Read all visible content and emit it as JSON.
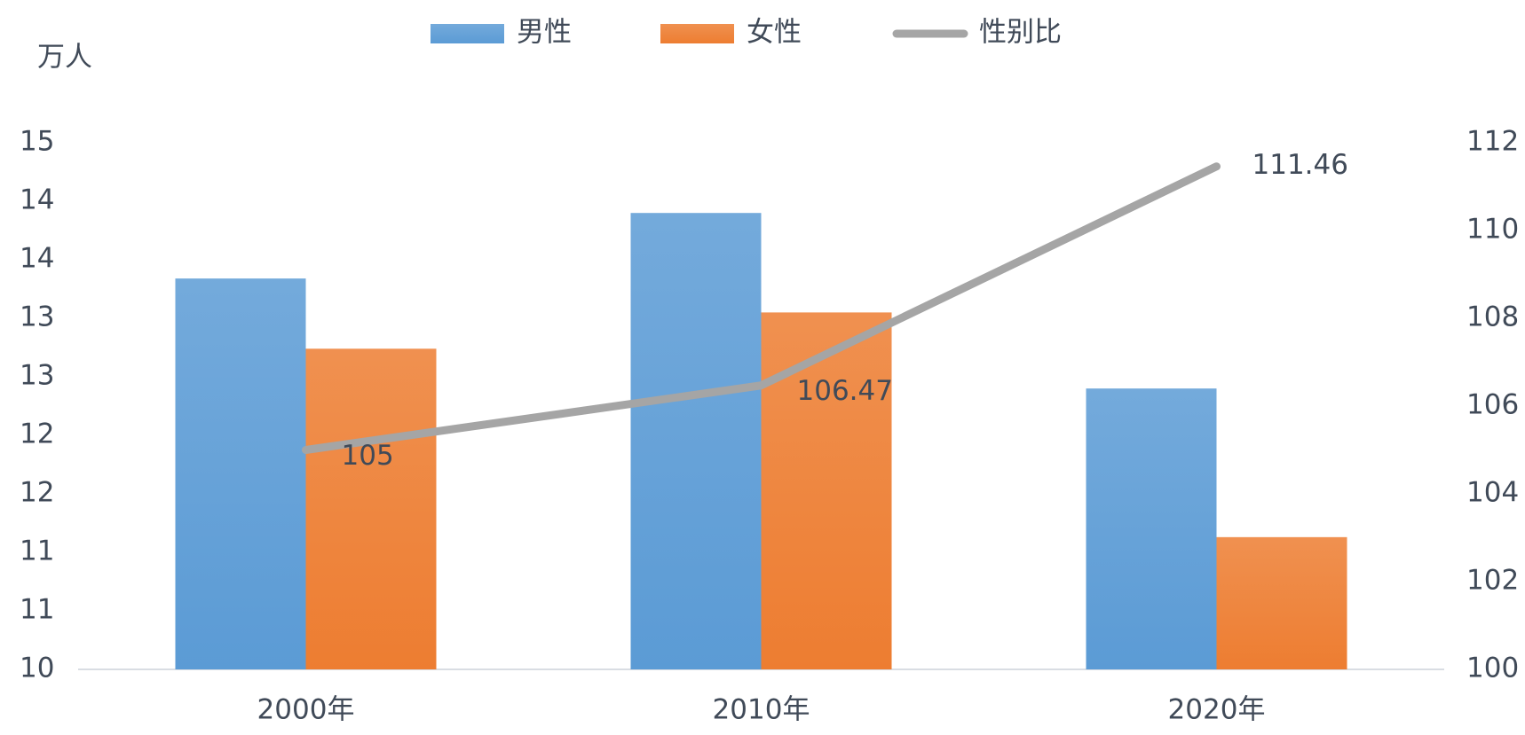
{
  "chart_data": {
    "type": "bar",
    "unit": "万人",
    "categories": [
      "2000年",
      "2010年",
      "2020年"
    ],
    "series": [
      {
        "name": "男性",
        "type": "bar",
        "color": "#5b9bd5",
        "values": [
          13.34,
          13.9,
          12.4
        ]
      },
      {
        "name": "女性",
        "type": "bar",
        "color": "#ed7d31",
        "values": [
          12.74,
          13.05,
          11.13
        ]
      },
      {
        "name": "性别比",
        "type": "line",
        "axis": "y2",
        "color": "#a5a5a5",
        "values": [
          105,
          106.47,
          111.46
        ]
      }
    ],
    "ylim": [
      10,
      14.5
    ],
    "yticks": [
      10,
      {
        "value": 10.5,
        "label": "11"
      },
      11,
      {
        "value": 11.5,
        "label": "12"
      },
      12,
      {
        "value": 12.5,
        "label": "13"
      },
      13,
      {
        "value": 13.5,
        "label": "14"
      },
      14,
      {
        "value": 14.5,
        "label": "15"
      }
    ],
    "y2lim": [
      100,
      112
    ],
    "y2ticks": [
      100,
      102,
      104,
      106,
      108,
      110,
      112
    ],
    "grid": false,
    "legend": "top"
  }
}
